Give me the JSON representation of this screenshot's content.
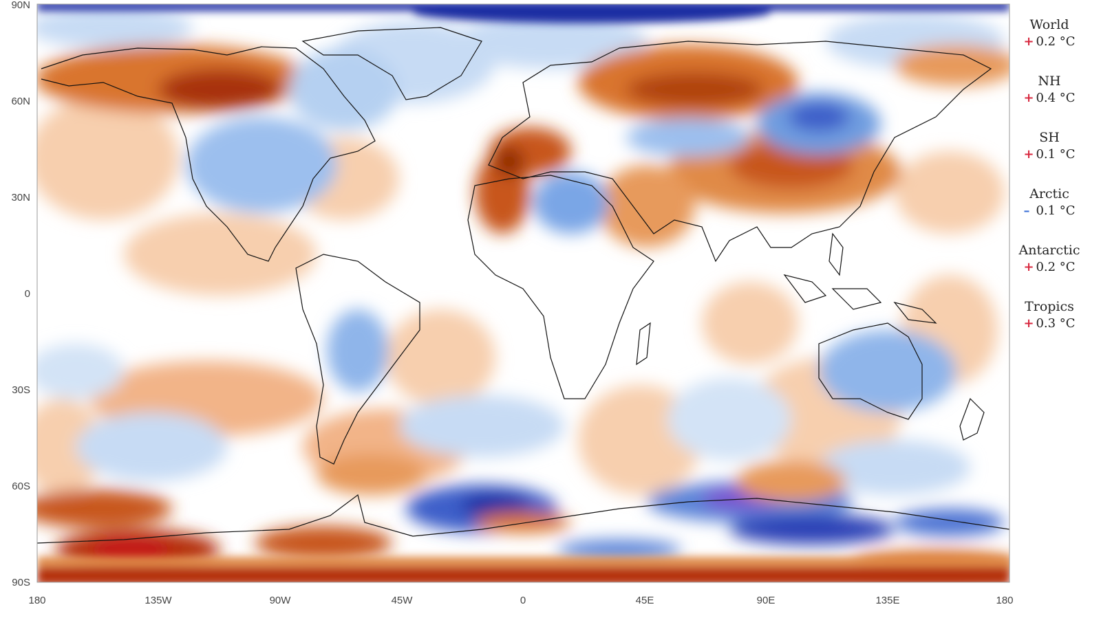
{
  "map": {
    "x_ticks": [
      "180",
      "135W",
      "90W",
      "45W",
      "0",
      "45E",
      "90E",
      "135E",
      "180"
    ],
    "y_ticks": [
      "90N",
      "60N",
      "30N",
      "0",
      "30S",
      "60S",
      "90S"
    ]
  },
  "legend": {
    "items": [
      {
        "name": "World",
        "sign": "+",
        "value": "0.2 °C",
        "color": "#d7263d"
      },
      {
        "name": "NH",
        "sign": "+",
        "value": "0.4 °C",
        "color": "#d7263d"
      },
      {
        "name": "SH",
        "sign": "+",
        "value": "0.1 °C",
        "color": "#d7263d"
      },
      {
        "name": "Arctic",
        "sign": "–",
        "value": "0.1 °C",
        "color": "#3b6fd6"
      },
      {
        "name": "Antarctic",
        "sign": "+",
        "value": "0.2 °C",
        "color": "#d7263d"
      },
      {
        "name": "Tropics",
        "sign": "+",
        "value": "0.3 °C",
        "color": "#d7263d"
      }
    ]
  },
  "palette": {
    "warm_strong": "#a8320a",
    "warm_mid": "#dd7b3c",
    "warm_light": "#f5c6a0",
    "cool_light": "#bcd6f2",
    "cool_mid": "#6f9de0",
    "cool_strong": "#1f2fa3",
    "violet": "#7b4fd0"
  }
}
